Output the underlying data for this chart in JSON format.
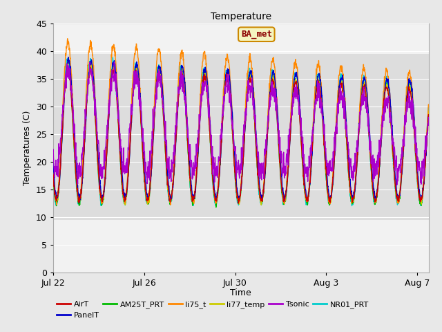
{
  "title": "Temperature",
  "xlabel": "Time",
  "ylabel": "Temperatures (C)",
  "ylim": [
    0,
    45
  ],
  "xlim_days": [
    0,
    16.5
  ],
  "x_ticks_days": [
    0,
    4,
    8,
    12,
    16
  ],
  "x_tick_labels": [
    "Jul 22",
    "Jul 26",
    "Jul 30",
    "Aug 3",
    "Aug 7"
  ],
  "y_ticks": [
    0,
    5,
    10,
    15,
    20,
    25,
    30,
    35,
    40,
    45
  ],
  "gray_band_low": 9.5,
  "gray_band_high": 39.5,
  "annotation_text": "BA_met",
  "series_colors": {
    "AirT": "#cc0000",
    "PanelT": "#0000cc",
    "AM25T_PRT": "#00bb00",
    "li75_t": "#ff8800",
    "li77_temp": "#cccc00",
    "Tsonic": "#aa00cc",
    "NR01_PRT": "#00cccc"
  },
  "legend_order": [
    "AirT",
    "PanelT",
    "AM25T_PRT",
    "li75_t",
    "li77_temp",
    "Tsonic",
    "NR01_PRT"
  ],
  "background_color": "#e8e8e8",
  "plot_bg_color": "#f2f2f2",
  "num_days": 16.5,
  "font_size": 9
}
